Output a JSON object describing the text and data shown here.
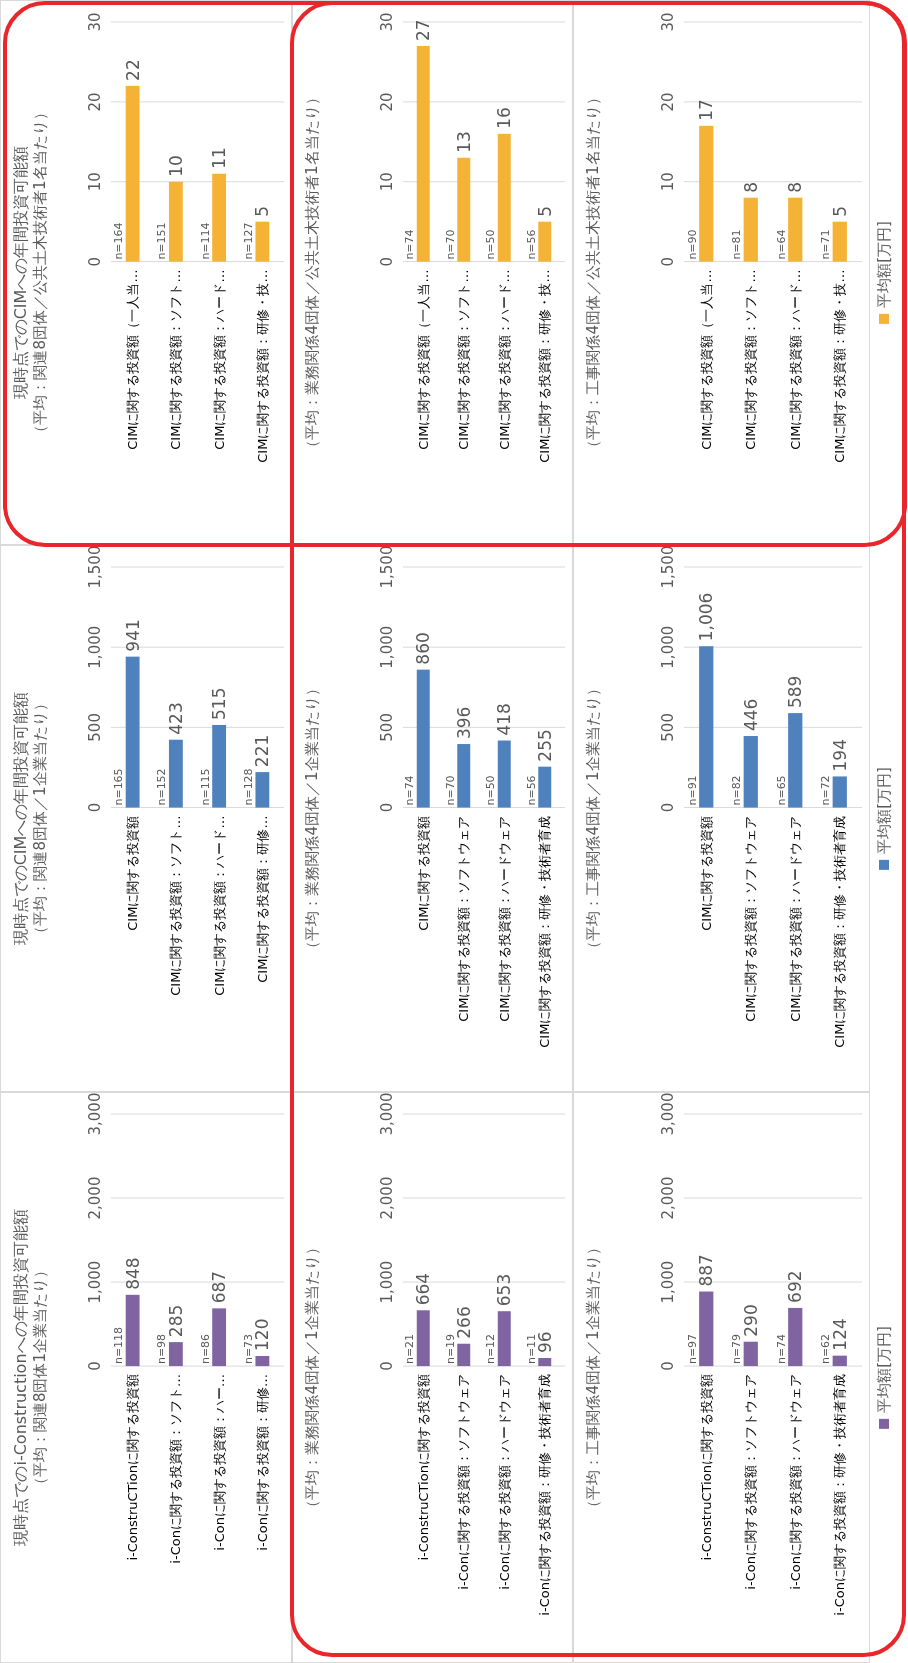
{
  "chart_data": [
    {
      "type": "bar",
      "title": "現時点でのCIMへの年間投資可能額",
      "subtitle": "（平均：関連8団体／公共土木技術者1名当たり）",
      "categories": [
        "CIMに関する投資額（一人当…",
        "CIMに関する投資額：ソフト…",
        "CIMに関する投資額：ハード…",
        "CIMに関する投資額：研修・技…"
      ],
      "series": [
        {
          "color": "#f5b335",
          "values": [
            22,
            10,
            11,
            5
          ]
        }
      ],
      "ylim": [
        0,
        30
      ],
      "yticks": [
        0,
        10,
        20,
        30
      ],
      "grid": "y",
      "data_labels": true,
      "annotations": [
        "n=164",
        "n=151",
        "n=114",
        "n=127"
      ]
    },
    {
      "type": "bar",
      "subtitle": "（平均：業務関係4団体／公共土木技術者1名当たり）",
      "categories": [
        "CIMに関する投資額（一人当…",
        "CIMに関する投資額：ソフト…",
        "CIMに関する投資額：ハード…",
        "CIMに関する投資額：研修・技…"
      ],
      "series": [
        {
          "color": "#f5b335",
          "values": [
            27,
            13,
            16,
            5
          ]
        }
      ],
      "ylim": [
        0,
        30
      ],
      "yticks": [
        0,
        10,
        20,
        30
      ],
      "grid": "y",
      "data_labels": true,
      "annotations": [
        "n=74",
        "n=70",
        "n=50",
        "n=56"
      ]
    },
    {
      "type": "bar",
      "subtitle": "（平均：工事関係4団体／公共土木技術者1名当たり）",
      "categories": [
        "CIMに関する投資額（一人当…",
        "CIMに関する投資額：ソフト…",
        "CIMに関する投資額：ハード…",
        "CIMに関する投資額：研修・技…"
      ],
      "series": [
        {
          "name": "平均額[万円]",
          "color": "#f5b335",
          "values": [
            17,
            8,
            8,
            5
          ]
        }
      ],
      "ylim": [
        0,
        30
      ],
      "yticks": [
        0,
        10,
        20,
        30
      ],
      "grid": "y",
      "data_labels": true,
      "legend": "right",
      "annotations": [
        "n=90",
        "n=81",
        "n=64",
        "n=71"
      ]
    },
    {
      "type": "bar",
      "title": "現時点でのCIMへの年間投資可能額",
      "subtitle": "（平均：関連8団体／1企業当たり）",
      "categories": [
        "CIMに関する投資額",
        "CIMに関する投資額：ソフト…",
        "CIMに関する投資額：ハード…",
        "CIMに関する投資額：研修…"
      ],
      "series": [
        {
          "color": "#4f81bd",
          "values": [
            941,
            423,
            515,
            221
          ]
        }
      ],
      "ylim": [
        0,
        1500
      ],
      "yticks": [
        0,
        500,
        {
          "value": 1000,
          "label": "1,000"
        },
        {
          "value": 1500,
          "label": "1,500"
        }
      ],
      "grid": "y",
      "data_labels": true,
      "annotations": [
        "n=165",
        "n=152",
        "n=115",
        "n=128"
      ]
    },
    {
      "type": "bar",
      "subtitle": "（平均：業務関係4団体／1企業当たり）",
      "categories": [
        "CIMに関する投資額",
        "CIMに関する投資額：ソフトウェア",
        "CIMに関する投資額：ハードウェア",
        "CIMに関する投資額：研修・技術者育成"
      ],
      "series": [
        {
          "color": "#4f81bd",
          "values": [
            860,
            396,
            418,
            255
          ]
        }
      ],
      "ylim": [
        0,
        1500
      ],
      "yticks": [
        0,
        500,
        {
          "value": 1000,
          "label": "1,000"
        },
        {
          "value": 1500,
          "label": "1,500"
        }
      ],
      "grid": "y",
      "data_labels": true,
      "annotations": [
        "n=74",
        "n=70",
        "n=50",
        "n=56"
      ]
    },
    {
      "type": "bar",
      "subtitle": "（平均：工事関係4団体／1企業当たり）",
      "categories": [
        "CIMに関する投資額",
        "CIMに関する投資額：ソフトウェア",
        "CIMに関する投資額：ハードウェア",
        "CIMに関する投資額：研修・技術者育成"
      ],
      "series": [
        {
          "name": "平均額[万円]",
          "color": "#4f81bd",
          "values": [
            1006,
            446,
            589,
            194
          ]
        }
      ],
      "ylim": [
        0,
        1500
      ],
      "yticks": [
        0,
        500,
        {
          "value": 1000,
          "label": "1,000"
        },
        {
          "value": 1500,
          "label": "1,500"
        }
      ],
      "grid": "y",
      "legend": "right",
      "value_labels": [
        "1,006",
        "446",
        "589",
        "194"
      ],
      "annotations": [
        "n=91",
        "n=82",
        "n=65",
        "n=72"
      ]
    },
    {
      "type": "bar",
      "title": "現時点でのi-Constructionへの年間投資可能額",
      "subtitle": "（平均：関連8団体1企業当たり）",
      "categories": [
        "i-ConstruCTionに関する投資額",
        "i-Conに関する投資額：ソフト…",
        "i-Conに関する投資額：ハー…",
        "i-Conに関する投資額：研修…"
      ],
      "series": [
        {
          "color": "#8064a2",
          "values": [
            848,
            285,
            687,
            120
          ]
        }
      ],
      "ylim": [
        0,
        3000
      ],
      "yticks": [
        0,
        {
          "value": 1000,
          "label": "1,000"
        },
        {
          "value": 2000,
          "label": "2,000"
        },
        {
          "value": 3000,
          "label": "3,000"
        }
      ],
      "grid": "y",
      "data_labels": true,
      "annotations": [
        "n=118",
        "n=98",
        "n=86",
        "n=73"
      ]
    },
    {
      "type": "bar",
      "subtitle": "（平均：業務関係4団体／1企業当たり）",
      "categories": [
        "i-ConstruCTionに関する投資額",
        "i-Conに関する投資額：ソフトウェア",
        "i-Conに関する投資額：ハードウェア",
        "i-Conに関する投資額：研修・技術者育成"
      ],
      "series": [
        {
          "color": "#8064a2",
          "values": [
            664,
            266,
            653,
            96
          ]
        }
      ],
      "ylim": [
        0,
        3000
      ],
      "yticks": [
        0,
        {
          "value": 1000,
          "label": "1,000"
        },
        {
          "value": 2000,
          "label": "2,000"
        },
        {
          "value": 3000,
          "label": "3,000"
        }
      ],
      "grid": "y",
      "data_labels": true,
      "annotations": [
        "n=21",
        "n=19",
        "n=12",
        "n=11"
      ]
    },
    {
      "type": "bar",
      "subtitle": "（平均：工事関係4団体／1企業当たり）",
      "categories": [
        "i-ConstruCTionに関する投資額",
        "i-Conに関する投資額：ソフトウェア",
        "i-Conに関する投資額：ハードウェア",
        "i-Conに関する投資額：研修・技術者育成"
      ],
      "series": [
        {
          "name": "平均額[万円]",
          "color": "#8064a2",
          "values": [
            887,
            290,
            692,
            124
          ]
        }
      ],
      "ylim": [
        0,
        3000
      ],
      "yticks": [
        0,
        {
          "value": 1000,
          "label": "1,000"
        },
        {
          "value": 2000,
          "label": "2,000"
        },
        {
          "value": 3000,
          "label": "3,000"
        }
      ],
      "grid": "y",
      "data_labels": true,
      "legend": "right",
      "annotations": [
        "n=97",
        "n=79",
        "n=74",
        "n=62"
      ]
    }
  ]
}
